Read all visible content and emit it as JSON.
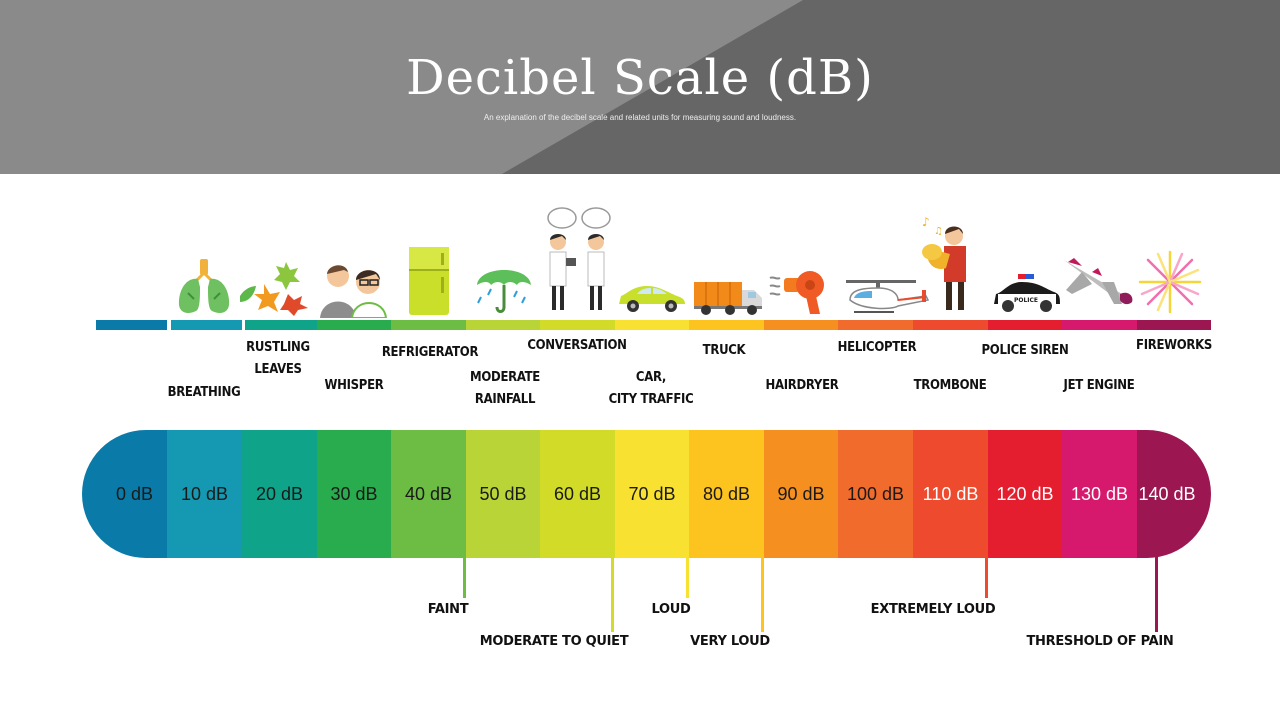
{
  "title": "Decibel Scale (dB)",
  "subtitle": "An explanation of the decibel scale and related units for measuring sound and loudness.",
  "colors": [
    "#0a7aa8",
    "#1598b1",
    "#0fa48a",
    "#29ac4d",
    "#6dbd44",
    "#b9d436",
    "#d2dc28",
    "#f8e130",
    "#fdc31f",
    "#f58f20",
    "#f16b2c",
    "#ee4a2d",
    "#e41e2f",
    "#d6196d",
    "#9c1651"
  ],
  "levels": [
    {
      "db": "0 dB",
      "text_color": "#1a1a1a"
    },
    {
      "db": "10 dB",
      "text_color": "#1a1a1a"
    },
    {
      "db": "20 dB",
      "text_color": "#1a1a1a"
    },
    {
      "db": "30 dB",
      "text_color": "#1a1a1a"
    },
    {
      "db": "40 dB",
      "text_color": "#1a1a1a"
    },
    {
      "db": "50 dB",
      "text_color": "#1a1a1a"
    },
    {
      "db": "60 dB",
      "text_color": "#1a1a1a"
    },
    {
      "db": "70 dB",
      "text_color": "#1a1a1a"
    },
    {
      "db": "80 dB",
      "text_color": "#1a1a1a"
    },
    {
      "db": "90 dB",
      "text_color": "#1a1a1a"
    },
    {
      "db": "100 dB",
      "text_color": "#1a1a1a"
    },
    {
      "db": "110 dB",
      "text_color": "#ffffff"
    },
    {
      "db": "120 dB",
      "text_color": "#ffffff"
    },
    {
      "db": "130 dB",
      "text_color": "#ffffff"
    },
    {
      "db": "140 dB",
      "text_color": "#ffffff"
    }
  ],
  "sources": [
    {
      "label": "BREATHING",
      "icon": "lungs-icon"
    },
    {
      "label": "RUSTLING\nLEAVES",
      "icon": "leaves-icon"
    },
    {
      "label": "WHISPER",
      "icon": "whisper-icon"
    },
    {
      "label": "REFRIGERATOR",
      "icon": "refrigerator-icon"
    },
    {
      "label": "MODERATE\nRAINFALL",
      "icon": "umbrella-icon"
    },
    {
      "label": "CONVERSATION",
      "icon": "conversation-icon"
    },
    {
      "label": "CAR,\nCITY TRAFFIC",
      "icon": "car-icon"
    },
    {
      "label": "TRUCK",
      "icon": "truck-icon"
    },
    {
      "label": "HAIRDRYER",
      "icon": "hairdryer-icon"
    },
    {
      "label": "HELICOPTER",
      "icon": "helicopter-icon"
    },
    {
      "label": "TROMBONE",
      "icon": "trombone-icon"
    },
    {
      "label": "POLICE SIREN",
      "icon": "police-car-icon"
    },
    {
      "label": "JET ENGINE",
      "icon": "jet-icon"
    },
    {
      "label": "FIREWORKS",
      "icon": "fireworks-icon"
    }
  ],
  "police_text": "POLICE",
  "thresholds": [
    {
      "label": "FAINT",
      "db": 40
    },
    {
      "label": "MODERATE TO QUIET",
      "db": 60
    },
    {
      "label": "LOUD",
      "db": 70
    },
    {
      "label": "VERY LOUD",
      "db": 80
    },
    {
      "label": "EXTREMELY LOUD",
      "db": 110
    },
    {
      "label": "THRESHOLD OF PAIN",
      "db": 140
    }
  ]
}
